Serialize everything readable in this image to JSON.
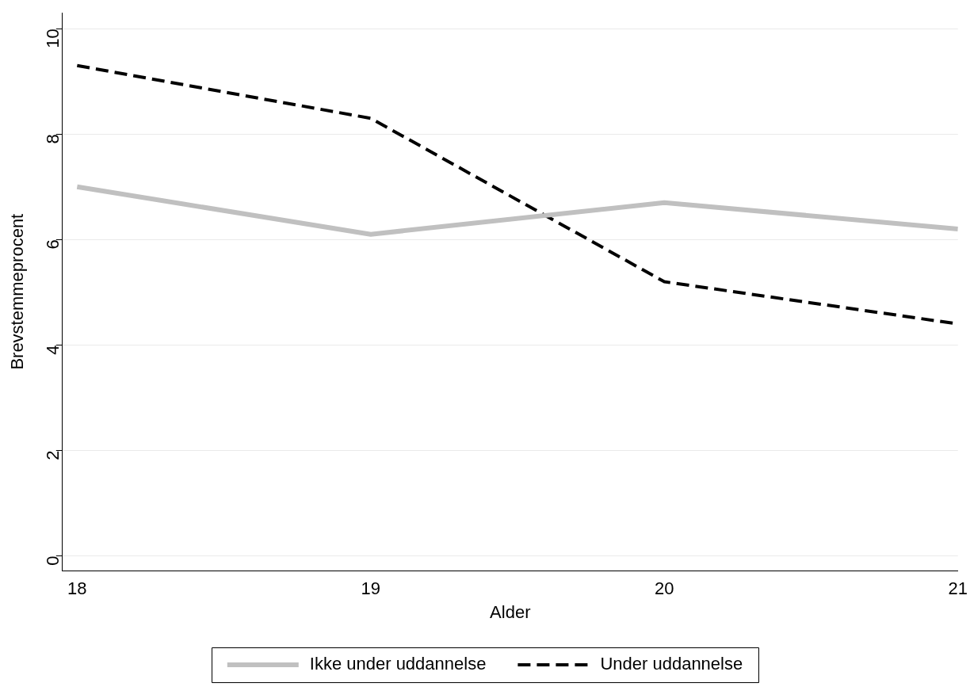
{
  "chart_data": {
    "type": "line",
    "xlabel": "Alder",
    "ylabel": "Brevstemmeprocent",
    "x": [
      18,
      19,
      20,
      21
    ],
    "xlim": [
      17.95,
      21
    ],
    "xticks": [
      18,
      19,
      20,
      21
    ],
    "ylim": [
      -0.28,
      10.3
    ],
    "yticks": [
      0,
      2,
      4,
      6,
      8,
      10
    ],
    "grid": "y",
    "legend": "bottom",
    "marker": "none",
    "series": [
      {
        "name": "Ikke under uddannelse",
        "color": "#c0c0c0",
        "line_style": "solid",
        "values": [
          7.0,
          6.1,
          6.7,
          6.2
        ]
      },
      {
        "name": "Under uddannelse",
        "color": "#000000",
        "line_style": "dashed",
        "values": [
          9.3,
          8.3,
          5.2,
          4.4
        ]
      }
    ]
  }
}
